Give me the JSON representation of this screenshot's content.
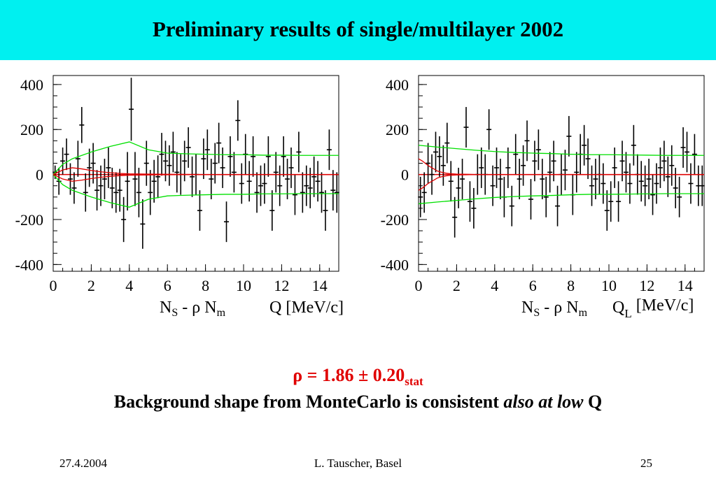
{
  "slide": {
    "title": "Preliminary results of single/multilayer 2002",
    "rho_symbol": "ρ",
    "rho_equals": " = ",
    "rho_value": "1.86 ± 0.20",
    "rho_subscript": "stat",
    "conclusion_main": "Background shape from MonteCarlo is consistent ",
    "conclusion_italic": "also at low",
    "conclusion_end": " Q",
    "footer_date": "27.4.2004",
    "footer_author": "L. Tauscher, Basel",
    "footer_page": "25"
  },
  "colors": {
    "title_bar": "#00f0f0",
    "data": "#000000",
    "zero_line": "#e00000",
    "envelope": "#00e000",
    "rho_text": "#e00000"
  },
  "chart_data": [
    {
      "type": "scatter",
      "title": "",
      "ylabel_parts": [
        "N",
        "S",
        " - ρ N",
        "m"
      ],
      "xlabel_parts": [
        "Q [MeV/c]",
        ""
      ],
      "xlim": [
        0,
        15
      ],
      "ylim": [
        -430,
        440
      ],
      "x_ticks": [
        0,
        2,
        4,
        6,
        8,
        10,
        12,
        14
      ],
      "y_ticks": [
        -400,
        -200,
        0,
        200,
        400
      ],
      "grid": false,
      "series": [
        {
          "kind": "points_with_errors",
          "x": [
            0.1,
            0.3,
            0.5,
            0.7,
            0.9,
            1.1,
            1.3,
            1.5,
            1.7,
            1.9,
            2.1,
            2.3,
            2.5,
            2.7,
            2.9,
            3.1,
            3.3,
            3.5,
            3.7,
            3.9,
            4.1,
            4.3,
            4.5,
            4.7,
            4.9,
            5.1,
            5.3,
            5.5,
            5.7,
            5.9,
            6.1,
            6.3,
            6.5,
            6.7,
            6.9,
            7.1,
            7.3,
            7.5,
            7.7,
            7.9,
            8.1,
            8.3,
            8.5,
            8.7,
            8.9,
            9.1,
            9.3,
            9.5,
            9.7,
            9.9,
            10.1,
            10.3,
            10.5,
            10.7,
            10.9,
            11.1,
            11.3,
            11.5,
            11.7,
            11.9,
            12.1,
            12.3,
            12.5,
            12.7,
            12.9,
            13.1,
            13.3,
            13.5,
            13.7,
            13.9,
            14.1,
            14.3,
            14.5,
            14.7,
            14.9
          ],
          "y": [
            10,
            -30,
            60,
            90,
            -20,
            -60,
            70,
            220,
            -80,
            30,
            50,
            -70,
            -50,
            -20,
            30,
            -60,
            -80,
            -70,
            -200,
            -30,
            290,
            -20,
            -80,
            -220,
            50,
            -80,
            -30,
            -10,
            90,
            60,
            40,
            100,
            10,
            0,
            60,
            120,
            -10,
            0,
            -160,
            70,
            110,
            -20,
            50,
            140,
            30,
            -210,
            80,
            10,
            240,
            -40,
            90,
            -30,
            80,
            -80,
            -50,
            -40,
            80,
            -160,
            10,
            -50,
            80,
            -20,
            30,
            -90,
            100,
            -80,
            -50,
            -60,
            -10,
            -30,
            -80,
            -160,
            110,
            -70,
            -80
          ],
          "yerr": [
            30,
            60,
            60,
            70,
            70,
            70,
            80,
            80,
            85,
            85,
            90,
            90,
            90,
            90,
            90,
            90,
            90,
            95,
            100,
            130,
            140,
            120,
            110,
            110,
            100,
            100,
            95,
            95,
            95,
            90,
            90,
            90,
            90,
            90,
            90,
            90,
            90,
            90,
            90,
            90,
            90,
            90,
            90,
            90,
            90,
            90,
            90,
            90,
            90,
            90,
            90,
            90,
            90,
            90,
            90,
            90,
            90,
            90,
            90,
            90,
            90,
            90,
            90,
            90,
            90,
            90,
            90,
            90,
            90,
            90,
            90,
            90,
            90,
            90,
            90
          ]
        },
        {
          "kind": "envelope",
          "x": [
            0,
            0.5,
            1,
            2,
            3,
            4,
            5,
            6,
            7,
            8,
            9,
            10,
            11,
            12,
            13,
            14,
            15
          ],
          "upper": [
            0,
            45,
            70,
            100,
            125,
            145,
            110,
            95,
            92,
            90,
            88,
            88,
            86,
            86,
            85,
            85,
            85
          ],
          "lower": [
            0,
            -45,
            -70,
            -100,
            -125,
            -145,
            -110,
            -95,
            -92,
            -90,
            -88,
            -88,
            -86,
            -86,
            -85,
            -85,
            -85
          ]
        },
        {
          "kind": "red_band",
          "x": [
            0,
            0.5,
            1,
            1.5,
            2,
            2.5,
            3,
            3.5,
            4,
            5,
            6,
            8,
            10,
            12,
            15
          ],
          "upper": [
            0,
            20,
            30,
            25,
            18,
            12,
            8,
            5,
            3,
            2,
            1,
            0,
            0,
            0,
            0
          ],
          "lower": [
            0,
            -20,
            -30,
            -25,
            -18,
            -12,
            -8,
            -5,
            -3,
            -2,
            -1,
            0,
            0,
            0,
            0
          ]
        }
      ]
    },
    {
      "type": "scatter",
      "title": "",
      "ylabel_parts": [
        "N",
        "S",
        " - ρ N",
        "m"
      ],
      "xlabel_parts": [
        "Q",
        "L",
        " [MeV/c]"
      ],
      "xlim": [
        0,
        15
      ],
      "ylim": [
        -430,
        440
      ],
      "x_ticks": [
        0,
        2,
        4,
        6,
        8,
        10,
        12,
        14
      ],
      "y_ticks": [
        -400,
        -200,
        0,
        200,
        400
      ],
      "grid": false,
      "series": [
        {
          "kind": "points_with_errors",
          "x": [
            0.1,
            0.3,
            0.5,
            0.7,
            0.9,
            1.1,
            1.3,
            1.5,
            1.7,
            1.9,
            2.1,
            2.3,
            2.5,
            2.7,
            2.9,
            3.1,
            3.3,
            3.5,
            3.7,
            3.9,
            4.1,
            4.3,
            4.5,
            4.7,
            4.9,
            5.1,
            5.3,
            5.5,
            5.7,
            5.9,
            6.1,
            6.3,
            6.5,
            6.7,
            6.9,
            7.1,
            7.3,
            7.5,
            7.7,
            7.9,
            8.1,
            8.3,
            8.5,
            8.7,
            8.9,
            9.1,
            9.3,
            9.5,
            9.7,
            9.9,
            10.1,
            10.3,
            10.5,
            10.7,
            10.9,
            11.1,
            11.3,
            11.5,
            11.7,
            11.9,
            12.1,
            12.3,
            12.5,
            12.7,
            12.9,
            13.1,
            13.3,
            13.5,
            13.7,
            13.9,
            14.1,
            14.3,
            14.5,
            14.7,
            14.9
          ],
          "y": [
            -100,
            -80,
            50,
            0,
            100,
            80,
            40,
            140,
            -30,
            -190,
            -60,
            -20,
            210,
            -120,
            -150,
            0,
            30,
            0,
            200,
            -50,
            30,
            -20,
            -100,
            30,
            -140,
            90,
            -20,
            40,
            150,
            -110,
            60,
            110,
            -20,
            -100,
            10,
            60,
            -140,
            0,
            20,
            170,
            -90,
            10,
            90,
            130,
            70,
            -50,
            -20,
            0,
            -40,
            -160,
            -120,
            30,
            -120,
            60,
            10,
            -40,
            130,
            0,
            -30,
            -50,
            -20,
            -90,
            -40,
            30,
            60,
            -10,
            40,
            -60,
            -100,
            120,
            100,
            -40,
            90,
            -50,
            -50
          ],
          "yerr": [
            90,
            90,
            90,
            90,
            90,
            90,
            90,
            90,
            90,
            90,
            90,
            90,
            90,
            90,
            90,
            90,
            90,
            90,
            90,
            90,
            90,
            90,
            90,
            90,
            90,
            90,
            90,
            90,
            90,
            90,
            90,
            90,
            90,
            90,
            90,
            90,
            90,
            90,
            90,
            90,
            90,
            90,
            90,
            90,
            90,
            90,
            90,
            90,
            90,
            90,
            90,
            90,
            90,
            90,
            90,
            90,
            90,
            90,
            90,
            90,
            90,
            90,
            90,
            90,
            90,
            90,
            90,
            90,
            90,
            90,
            90,
            90,
            90,
            90,
            90
          ]
        },
        {
          "kind": "envelope",
          "x": [
            0,
            1,
            2,
            3,
            4,
            5,
            6,
            7,
            8,
            9,
            10,
            11,
            12,
            13,
            14,
            15
          ],
          "upper": [
            130,
            122,
            115,
            108,
            102,
            98,
            95,
            93,
            90,
            88,
            88,
            87,
            86,
            85,
            85,
            85
          ],
          "lower": [
            -130,
            -122,
            -115,
            -108,
            -102,
            -98,
            -95,
            -93,
            -90,
            -88,
            -88,
            -87,
            -86,
            -85,
            -85,
            -85
          ]
        },
        {
          "kind": "red_band",
          "x": [
            0,
            0.2,
            0.5,
            0.8,
            1,
            1.3,
            1.6,
            2,
            2.5,
            3,
            4,
            6,
            10,
            15
          ],
          "upper": [
            70,
            60,
            40,
            25,
            15,
            8,
            4,
            2,
            1,
            0,
            0,
            0,
            0,
            0
          ],
          "lower": [
            -70,
            -60,
            -40,
            -25,
            -15,
            -8,
            -4,
            -2,
            -1,
            0,
            0,
            0,
            0,
            0
          ]
        }
      ]
    }
  ]
}
